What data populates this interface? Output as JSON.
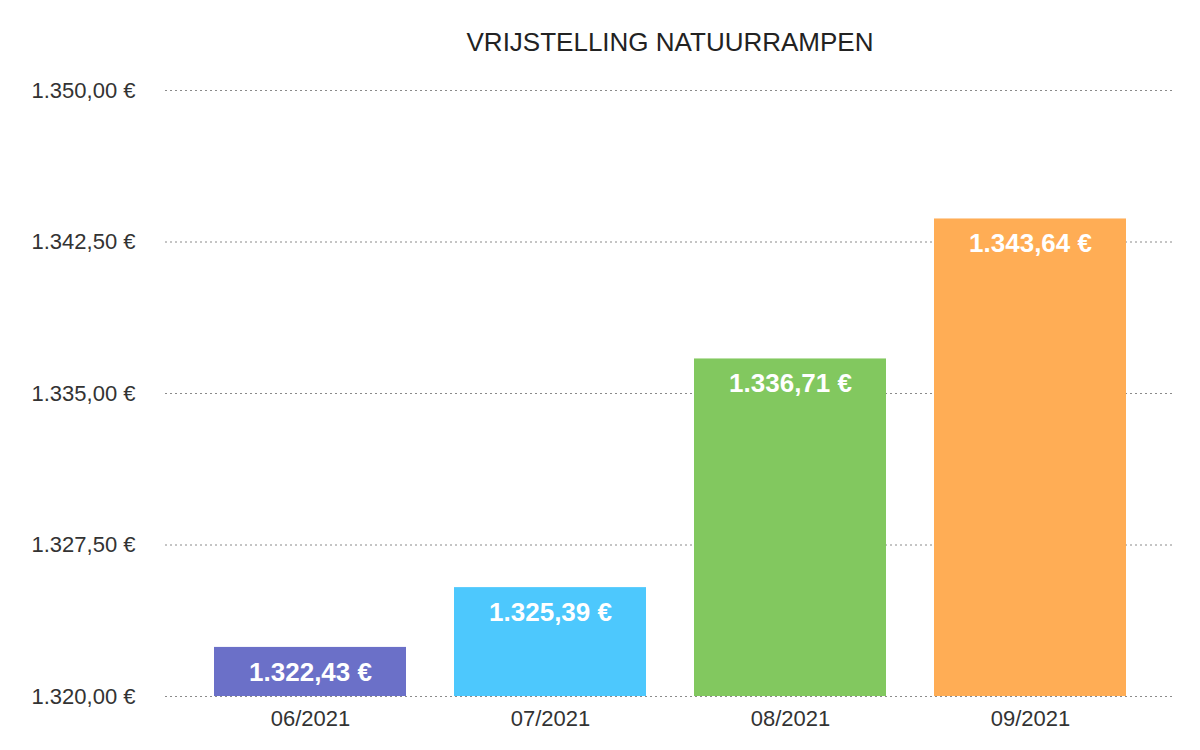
{
  "chart_data": {
    "type": "bar",
    "title": "VRIJSTELLING NATUURRAMPEN",
    "categories": [
      "06/2021",
      "07/2021",
      "08/2021",
      "09/2021"
    ],
    "values": [
      1322.43,
      1325.39,
      1336.71,
      1343.64
    ],
    "value_labels": [
      "1.322,43 €",
      "1.325,39 €",
      "1.336,71 €",
      "1.343,64 €"
    ],
    "colors": [
      "#6b70c8",
      "#4dc8fd",
      "#82c85f",
      "#ffad55"
    ],
    "ylim": [
      1320,
      1350
    ],
    "yticks": [
      {
        "value": 1320,
        "label": "1.320,00 €"
      },
      {
        "value": 1327.5,
        "label": "1.327,50 €"
      },
      {
        "value": 1335,
        "label": "1.335,00 €"
      },
      {
        "value": 1342.5,
        "label": "1.342,50 €"
      },
      {
        "value": 1350,
        "label": "1.350,00 €"
      }
    ],
    "grid": true,
    "data_labels": true
  }
}
